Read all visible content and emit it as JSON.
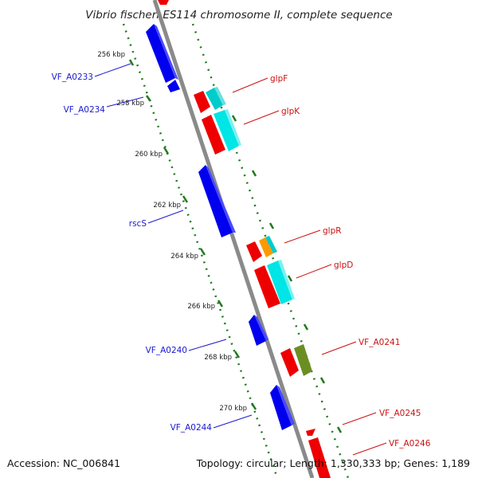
{
  "title": "Vibrio fischeri ES114 chromosome II, complete sequence",
  "footer": {
    "accession": "Accession: NC_006841",
    "summary": "Topology: circular; Length: 1,330,333 bp; Genes: 1,189"
  },
  "scale_labels": [
    "256 kbp",
    "258 kbp",
    "260 kbp",
    "262 kbp",
    "264 kbp",
    "266 kbp",
    "268 kbp",
    "270 kbp"
  ],
  "gene_labels": {
    "left": [
      "VF_A0233",
      "VF_A0234",
      "rscS",
      "VF_A0240",
      "VF_A0244"
    ],
    "right": [
      "glpF",
      "glpK",
      "glpR",
      "glpD",
      "VF_A0241",
      "VF_A0245",
      "VF_A0246"
    ]
  },
  "colors": {
    "strand_minus": "#0000ee",
    "strand_plus": "#ee0000",
    "glpK_glpF_feature": "#00dddd",
    "glpR_feature": "#ff9900",
    "VF_A0241_feature": "#6b8e23",
    "tick": "#1f7a1f",
    "backbone": "#909090"
  }
}
